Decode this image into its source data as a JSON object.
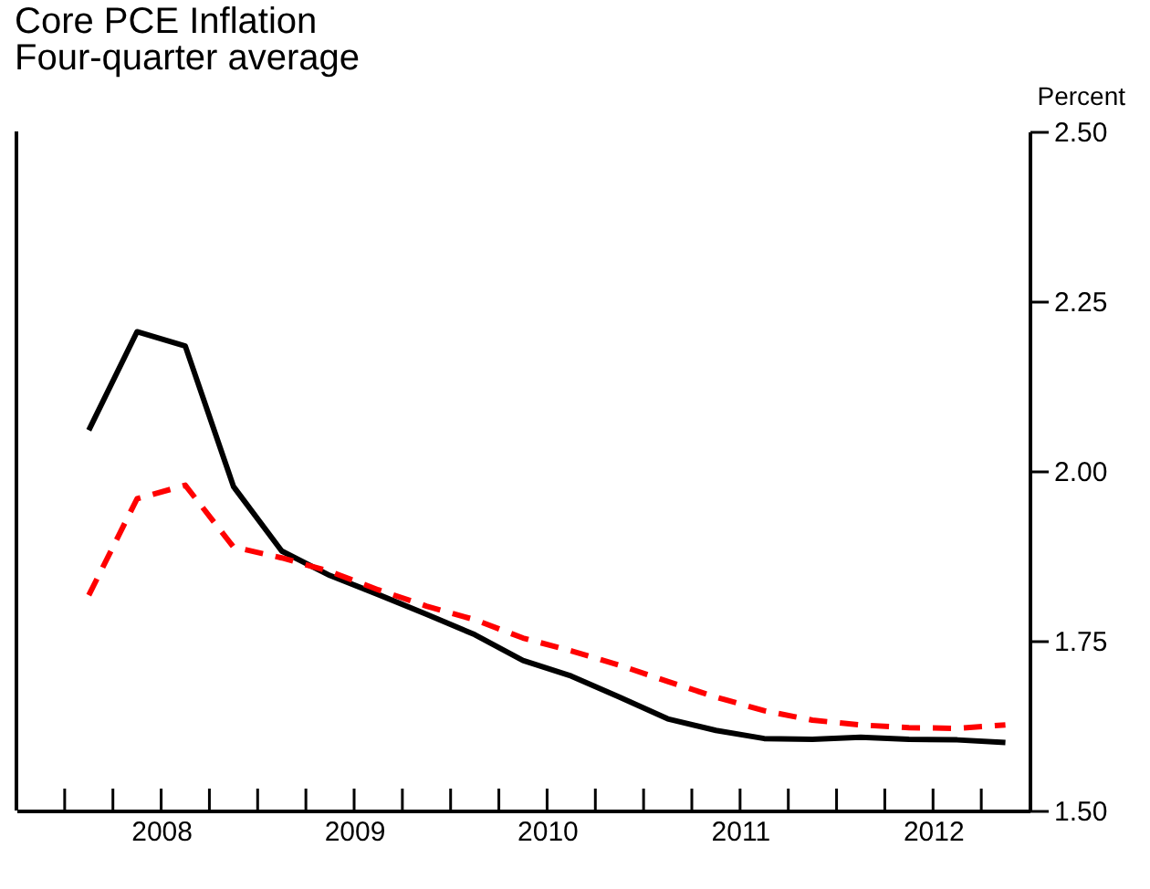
{
  "chart_data": {
    "type": "line",
    "title": "Core PCE Inflation",
    "subtitle": "Four-quarter average",
    "ylabel": "Percent",
    "x": [
      2008.125,
      2008.375,
      2008.625,
      2008.875,
      2009.125,
      2009.375,
      2009.625,
      2009.875,
      2010.125,
      2010.375,
      2010.625,
      2010.875,
      2011.125,
      2011.375,
      2011.625,
      2011.875,
      2012.125,
      2012.375,
      2012.625,
      2012.875
    ],
    "series": [
      {
        "color": "#000000",
        "line_style": "solid",
        "values": [
          2.06,
          2.205,
          2.184,
          1.977,
          1.882,
          1.846,
          1.818,
          1.789,
          1.759,
          1.721,
          1.698,
          1.667,
          1.635,
          1.618,
          1.606,
          1.605,
          1.608,
          1.605,
          1.604,
          1.6
        ]
      },
      {
        "color": "#ff0000",
        "line_style": "dashed",
        "values": [
          1.817,
          1.959,
          1.979,
          1.888,
          1.872,
          1.852,
          1.825,
          1.801,
          1.781,
          1.754,
          1.735,
          1.714,
          1.69,
          1.667,
          1.647,
          1.633,
          1.626,
          1.622,
          1.621,
          1.626
        ]
      }
    ],
    "xlim": [
      2007.75,
      2013.0
    ],
    "xticks": [
      {
        "value": 2008.0,
        "label": null
      },
      {
        "value": 2008.25,
        "label": null
      },
      {
        "value": 2008.5,
        "label": "2008"
      },
      {
        "value": 2008.75,
        "label": null
      },
      {
        "value": 2009.0,
        "label": null
      },
      {
        "value": 2009.25,
        "label": null
      },
      {
        "value": 2009.5,
        "label": "2009"
      },
      {
        "value": 2009.75,
        "label": null
      },
      {
        "value": 2010.0,
        "label": null
      },
      {
        "value": 2010.25,
        "label": null
      },
      {
        "value": 2010.5,
        "label": "2010"
      },
      {
        "value": 2010.75,
        "label": null
      },
      {
        "value": 2011.0,
        "label": null
      },
      {
        "value": 2011.25,
        "label": null
      },
      {
        "value": 2011.5,
        "label": "2011"
      },
      {
        "value": 2011.75,
        "label": null
      },
      {
        "value": 2012.0,
        "label": null
      },
      {
        "value": 2012.25,
        "label": null
      },
      {
        "value": 2012.5,
        "label": "2012"
      },
      {
        "value": 2012.75,
        "label": null
      }
    ],
    "ylim": [
      1.5,
      2.5
    ],
    "yticks": [
      {
        "value": 1.5,
        "label": "1.50"
      },
      {
        "value": 1.75,
        "label": "1.75"
      },
      {
        "value": 2.0,
        "label": "2.00"
      },
      {
        "value": 2.25,
        "label": "2.25"
      },
      {
        "value": 2.5,
        "label": "2.50"
      }
    ],
    "grid": false,
    "marker": "none"
  }
}
